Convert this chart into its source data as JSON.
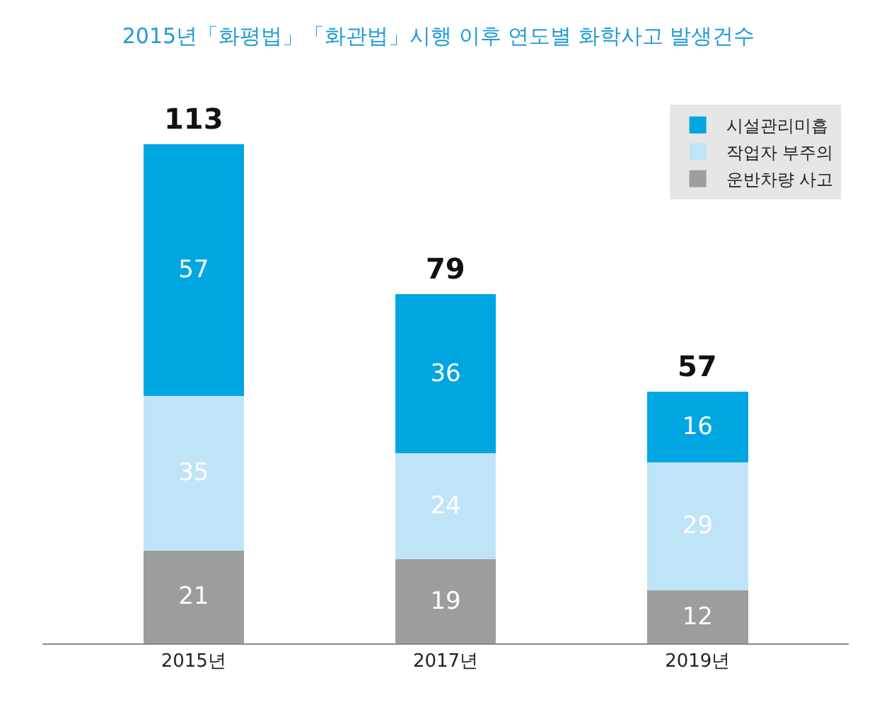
{
  "chart_data": {
    "type": "bar",
    "stacked": true,
    "title": "2015년「화평법」「화관법」시행 이후 연도별 화학사고 발생건수",
    "categories": [
      "2015년",
      "2017년",
      "2019년"
    ],
    "series": [
      {
        "name": "운반차량 사고",
        "color": "#9d9d9d",
        "values": [
          21,
          19,
          12
        ]
      },
      {
        "name": "작업자 부주의",
        "color": "#bfe4f7",
        "values": [
          35,
          24,
          29
        ]
      },
      {
        "name": "시설관리미흡",
        "color": "#00a6e2",
        "values": [
          57,
          36,
          16
        ]
      }
    ],
    "data_labels": true,
    "totals": [
      "113",
      "79",
      "57"
    ],
    "legend": "top right"
  }
}
